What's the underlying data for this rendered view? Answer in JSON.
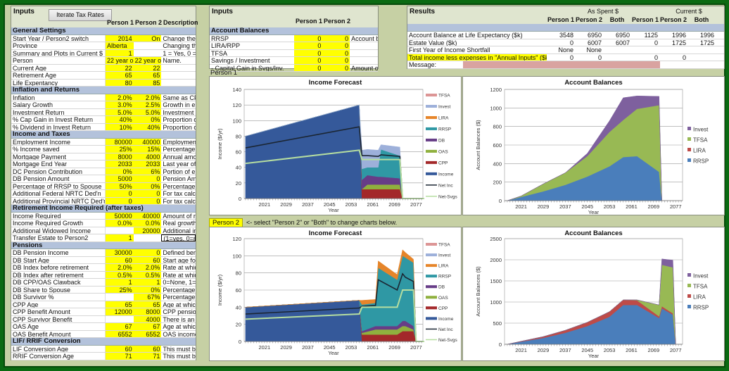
{
  "left_panel": {
    "title": "Inputs",
    "iterate_button": "Iterate Tax Rates",
    "col_headers": [
      "Person 1",
      "Person 2",
      "Description"
    ],
    "rows": [
      {
        "type": "header",
        "label": "General Settings"
      },
      {
        "label": "Start Year / Person2 switch",
        "p1": "2014",
        "p2": "On",
        "desc": "Change the C"
      },
      {
        "label": "Province",
        "p1": "Alberta",
        "p2": "",
        "desc": "Changing the",
        "p2_blank": true,
        "p1_left": true
      },
      {
        "label": "Summary and Plots in Current $",
        "p1": "1",
        "p2": "",
        "desc": "1 = Yes, 0 =",
        "p2_blank": true
      },
      {
        "label": "Person",
        "p1": "22 year ol",
        "p2": "22 year ol",
        "desc": "Name.",
        "p1_left": true,
        "p2_left": true
      },
      {
        "label": "Current Age",
        "p1": "22",
        "p2": "22",
        "desc": ""
      },
      {
        "label": "Retirement Age",
        "p1": "65",
        "p2": "65",
        "desc": ""
      },
      {
        "label": "Life Expentancy",
        "p1": "80",
        "p2": "85",
        "desc": ""
      },
      {
        "type": "header",
        "label": "Inflation and Returns"
      },
      {
        "label": "Inflation",
        "p1": "2.0%",
        "p2": "2.0%",
        "desc": "Same as CP"
      },
      {
        "label": "Salary Growth",
        "p1": "3.0%",
        "p2": "2.5%",
        "desc": "Growth in em"
      },
      {
        "label": "Investment Return",
        "p1": "5.0%",
        "p2": "5.0%",
        "desc": "Investment re"
      },
      {
        "label": "% Cap Gain in Invest Return",
        "p1": "40%",
        "p2": "0%",
        "desc": "Proportion of"
      },
      {
        "label": "% Dividend in Invest Return",
        "p1": "10%",
        "p2": "40%",
        "desc": "Proportion of"
      },
      {
        "type": "header",
        "label": "Income and Taxes"
      },
      {
        "label": "Employment Income",
        "p1": "80000",
        "p2": "40000",
        "desc": "Employment"
      },
      {
        "label": "% Income saved",
        "p1": "25%",
        "p2": "15%",
        "desc": "Percentage c"
      },
      {
        "label": "Mortgage Payment",
        "p1": "8000",
        "p2": "4000",
        "desc": "Annual amou"
      },
      {
        "label": "Mortgage End Year",
        "p1": "2033",
        "p2": "2033",
        "desc": "Last year of t"
      },
      {
        "label": "DC Pension Contribution",
        "p1": "0%",
        "p2": "6%",
        "desc": "Portion of em"
      },
      {
        "label": "DB Pension Amount",
        "p1": "5000",
        "p2": "0",
        "desc": "Pension Amc"
      },
      {
        "label": "Percentage of RRSP to Spouse",
        "p1": "50%",
        "p2": "0%",
        "desc": "Percentage c"
      },
      {
        "label": "Additional Federal NRTC Ded'n",
        "p1": "0",
        "p2": "0",
        "desc": "For tax calcu"
      },
      {
        "label": "Additional Provincial NRTC Ded'n",
        "p1": "0",
        "p2": "0",
        "desc": "For tax calcu"
      },
      {
        "type": "header",
        "label": "Retirement Income Required (after taxes)"
      },
      {
        "label": "Income Required",
        "p1": "50000",
        "p2": "40000",
        "desc": "Amount of re"
      },
      {
        "label": "Income Required Growth",
        "p1": "0.0%",
        "p2": "0.0%",
        "desc": "Real growth i"
      },
      {
        "label": "Additional Widowed Income",
        "p1": "",
        "p2": "20000",
        "desc": "Additional inc",
        "p1_blank": true
      },
      {
        "label": "Transfer Estate to Person2",
        "p1": "1",
        "p2": "",
        "desc": "(1=yes, 0=no",
        "p2_blank": true,
        "desc_boxed": true
      },
      {
        "type": "header",
        "label": "Pensions"
      },
      {
        "label": "DB Pension Income",
        "p1": "30000",
        "p2": "0",
        "desc": "Defined bene"
      },
      {
        "label": "DB Start Age",
        "p1": "60",
        "p2": "60",
        "desc": "Start age for"
      },
      {
        "label": "DB Index before retirement",
        "p1": "2.0%",
        "p2": "2.0%",
        "desc": "Rate at which"
      },
      {
        "label": "DB Index after retirement",
        "p1": "0.5%",
        "p2": "0.5%",
        "desc": "Rate at which"
      },
      {
        "label": "DB CPP/OAS Clawback",
        "p1": "1",
        "p2": "1",
        "desc": "0=None, 1=C"
      },
      {
        "label": "DB Share to Spouse",
        "p1": "25%",
        "p2": "0%",
        "desc": "Percentage c"
      },
      {
        "label": "DB Survivor %",
        "p1": "",
        "p2": "67%",
        "desc": "Percentage c",
        "p1_blank": true
      },
      {
        "label": "CPP Age",
        "p1": "65",
        "p2": "65",
        "desc": "Age at which"
      },
      {
        "label": "CPP Benefit Amount",
        "p1": "12000",
        "p2": "8000",
        "desc": "CPP pension"
      },
      {
        "label": "CPP Survivor Benefit",
        "p1": "",
        "p2": "4000",
        "desc": "There is an e",
        "p1_blank": true
      },
      {
        "label": "OAS Age",
        "p1": "67",
        "p2": "67",
        "desc": "Age at which"
      },
      {
        "label": "OAS Benefit Amount",
        "p1": "6552",
        "p2": "6552",
        "desc": "OAS income"
      },
      {
        "type": "header",
        "label": "LIF/ RRIF Conversion"
      },
      {
        "label": "LIF Conversion Age",
        "p1": "60",
        "p2": "60",
        "desc": "This must be"
      },
      {
        "label": "RRIF Conversion Age",
        "p1": "71",
        "p2": "71",
        "desc": "This must be"
      }
    ]
  },
  "mid_panel": {
    "title": "Inputs",
    "col_headers": [
      "Person 1",
      "Person 2"
    ],
    "rows": [
      {
        "type": "header",
        "label": "Account Balances"
      },
      {
        "label": "RRSP",
        "p1": "0",
        "p2": "0",
        "desc": "Account ba"
      },
      {
        "label": "LIRA/RPP",
        "p1": "0",
        "p2": "0",
        "desc": ""
      },
      {
        "label": "TFSA",
        "p1": "0",
        "p2": "0",
        "desc": ""
      },
      {
        "label": "Savings / Investment",
        "p1": "0",
        "p2": "0",
        "desc": ""
      },
      {
        "label": " - Capital Gain in Svgs/Inv.",
        "p1": "0",
        "p2": "0",
        "desc": "Amount of"
      }
    ]
  },
  "results": {
    "title": "Results",
    "group_as_spent": "As Spent $",
    "group_current": "Current $",
    "col_headers": [
      "Person 1",
      "Person 2",
      "Both",
      "Person 1",
      "Person 2",
      "Both"
    ],
    "rows": [
      {
        "label": "Account Balance at Life Expectancy ($k)",
        "vals": [
          "3548",
          "6950",
          "6950",
          "1125",
          "1996",
          "1996"
        ]
      },
      {
        "label": "Estate Value ($k)",
        "vals": [
          "0",
          "6007",
          "6007",
          "0",
          "1725",
          "1725"
        ]
      },
      {
        "label": "First Year of Income Shortfall",
        "vals": [
          "None",
          "None",
          "",
          "",
          "",
          ""
        ]
      },
      {
        "label": "Total income less expenses in \"Annual Inputs\" ($k)",
        "vals": [
          "0",
          "0",
          "",
          "0",
          "0",
          ""
        ],
        "highlight": true
      },
      {
        "label": "Message:",
        "vals": [],
        "message": ""
      }
    ]
  },
  "person1_label": "Person 1",
  "person2_selector": {
    "value": "Person 2",
    "hint": "<- select \"Person 2\" or \"Both\" to change charts below."
  },
  "colors": {
    "Income": "#35599a",
    "CPP": "#a3282a",
    "OAS": "#8fb03e",
    "DB": "#673d87",
    "RRSP": "#2f98a4",
    "LIRA": "#e6852a",
    "Invest": "#9db0da",
    "TFSA": "#dc9595",
    "Net Inc": "#1b2633",
    "Net-Svgs": "#b6dea0",
    "bal_RRSP": "#4a7ebb",
    "bal_LIRA": "#be4b48",
    "bal_TFSA": "#98b954",
    "bal_Invest": "#7e609e",
    "message_bg": "#d9a3a0",
    "input_yellow": "#ffff00"
  },
  "chart_data": [
    {
      "id": "p1-income",
      "type": "area",
      "title": "Income Forecast",
      "xlabel": "Year",
      "ylabel": "Income ($/yr)",
      "ylim": [
        0,
        140
      ],
      "yticks": [
        0,
        20,
        40,
        60,
        80,
        100,
        120,
        140
      ],
      "xticks": [
        2021,
        2029,
        2037,
        2045,
        2053,
        2061,
        2069,
        2077
      ],
      "xlim": [
        2013.5,
        2079.5
      ],
      "grid": true,
      "legend": "right",
      "x": [
        2014,
        2056,
        2057,
        2059,
        2063,
        2064,
        2071,
        2072,
        2080
      ],
      "legend_order": [
        "TFSA",
        "Invest",
        "LIRA",
        "RRSP",
        "DB",
        "OAS",
        "CPP",
        "Income",
        "Net Inc",
        "Net-Svgs"
      ],
      "stack": [
        {
          "name": "Income",
          "values": [
            80,
            120,
            0,
            0,
            0,
            0,
            0,
            0,
            0
          ]
        },
        {
          "name": "CPP",
          "values": [
            0,
            0,
            12,
            12,
            12,
            12,
            12,
            0,
            0
          ]
        },
        {
          "name": "OAS",
          "values": [
            0,
            0,
            0,
            6,
            6,
            6,
            6,
            0,
            0
          ]
        },
        {
          "name": "DB",
          "values": [
            0,
            0,
            12,
            12,
            10,
            10,
            8,
            0,
            0
          ]
        },
        {
          "name": "RRSP",
          "values": [
            0,
            0,
            14,
            10,
            12,
            35,
            29,
            0,
            0
          ]
        },
        {
          "name": "LIRA",
          "values": [
            0,
            0,
            0,
            0,
            0,
            0,
            0,
            0,
            0
          ]
        },
        {
          "name": "Invest",
          "values": [
            0,
            0,
            24,
            23,
            22,
            6,
            11,
            0,
            0
          ]
        },
        {
          "name": "TFSA",
          "values": [
            0,
            0,
            0,
            0,
            0,
            0,
            0,
            0,
            0
          ]
        }
      ],
      "lines": [
        {
          "name": "Net Inc",
          "values": [
            65,
            92,
            55,
            55,
            54,
            56,
            54,
            0,
            0
          ]
        },
        {
          "name": "Net-Svgs",
          "values": [
            45,
            62,
            50,
            50,
            50,
            50,
            50,
            0,
            0
          ]
        }
      ]
    },
    {
      "id": "p1-balances",
      "type": "area",
      "title": "Account Balances",
      "xlabel": "Year",
      "ylabel": "Account Balances ($)",
      "ylim": [
        0,
        1200
      ],
      "yticks": [
        0,
        200,
        400,
        600,
        800,
        1000,
        1200
      ],
      "xticks": [
        2021,
        2029,
        2037,
        2045,
        2053,
        2061,
        2069,
        2077
      ],
      "xlim": [
        2015,
        2079.5
      ],
      "grid": true,
      "legend": "right",
      "x": [
        2016,
        2021,
        2029,
        2037,
        2045,
        2053,
        2058,
        2063,
        2071,
        2072
      ],
      "legend_order": [
        "Invest",
        "TFSA",
        "LIRA",
        "RRSP"
      ],
      "stack": [
        {
          "name": "RRSP",
          "values": [
            0,
            40,
            100,
            170,
            260,
            370,
            470,
            480,
            310,
            0
          ]
        },
        {
          "name": "LIRA",
          "values": [
            0,
            0,
            0,
            0,
            0,
            0,
            0,
            0,
            0,
            0
          ]
        },
        {
          "name": "TFSA",
          "values": [
            0,
            10,
            80,
            130,
            220,
            370,
            400,
            510,
            720,
            0
          ]
        },
        {
          "name": "Invest",
          "values": [
            0,
            0,
            0,
            0,
            30,
            120,
            240,
            140,
            95,
            0
          ]
        }
      ],
      "lines": []
    },
    {
      "id": "p2-income",
      "type": "area",
      "title": "Income Forecast",
      "xlabel": "Year",
      "ylabel": "Income ($/yr)",
      "ylim": [
        0,
        120
      ],
      "yticks": [
        0,
        20,
        40,
        60,
        80,
        100,
        120
      ],
      "xticks": [
        2021,
        2029,
        2037,
        2045,
        2053,
        2061,
        2069,
        2077
      ],
      "xlim": [
        2013.5,
        2079.5
      ],
      "grid": true,
      "legend": "right",
      "x": [
        2014,
        2056,
        2057,
        2062,
        2063,
        2070,
        2072,
        2073,
        2076,
        2077,
        2080
      ],
      "legend_order": [
        "TFSA",
        "Invest",
        "LIRA",
        "RRSP",
        "DB",
        "OAS",
        "CPP",
        "Income",
        "Net Inc",
        "Net-Svgs"
      ],
      "stack": [
        {
          "name": "Income",
          "values": [
            40,
            48,
            0,
            0,
            0,
            0,
            0,
            0,
            0,
            0,
            0
          ]
        },
        {
          "name": "CPP",
          "values": [
            0,
            0,
            8,
            8,
            8,
            8,
            12,
            12,
            12,
            0,
            0
          ]
        },
        {
          "name": "OAS",
          "values": [
            0,
            0,
            2,
            6,
            6,
            6,
            6,
            6,
            2,
            0,
            0
          ]
        },
        {
          "name": "DB",
          "values": [
            0,
            0,
            2,
            4,
            4,
            4,
            6,
            6,
            4,
            0,
            0
          ]
        },
        {
          "name": "RRSP",
          "values": [
            0,
            0,
            31,
            27,
            68,
            54,
            76,
            74,
            74,
            0,
            0
          ]
        },
        {
          "name": "LIRA",
          "values": [
            0,
            0,
            5,
            4,
            8,
            6,
            7,
            6,
            4,
            0,
            0
          ]
        },
        {
          "name": "Invest",
          "values": [
            0,
            0,
            0,
            0,
            0,
            0,
            0,
            0,
            0,
            0,
            0
          ]
        },
        {
          "name": "TFSA",
          "values": [
            0,
            0,
            0,
            0,
            0,
            0,
            0,
            0,
            0,
            0,
            0
          ]
        }
      ],
      "lines": [
        {
          "name": "Net Inc",
          "values": [
            32,
            39,
            41,
            42,
            72,
            60,
            79,
            75,
            70,
            0,
            0
          ]
        },
        {
          "name": "Net-Svgs",
          "values": [
            26,
            32,
            40,
            40,
            40,
            40,
            60,
            60,
            60,
            0,
            0
          ]
        }
      ]
    },
    {
      "id": "p2-balances",
      "type": "area",
      "title": "Account Balances",
      "xlabel": "Year",
      "ylabel": "Account Balances ($)",
      "ylim": [
        0,
        2500
      ],
      "yticks": [
        0,
        500,
        1000,
        1500,
        2000,
        2500
      ],
      "xticks": [
        2021,
        2029,
        2037,
        2045,
        2053,
        2061,
        2069,
        2077
      ],
      "xlim": [
        2015,
        2079.5
      ],
      "grid": true,
      "legend": "right",
      "x": [
        2016,
        2021,
        2029,
        2037,
        2045,
        2053,
        2058,
        2063,
        2071,
        2072,
        2076,
        2077
      ],
      "legend_order": [
        "Invest",
        "TFSA",
        "LIRA",
        "RRSP"
      ],
      "stack": [
        {
          "name": "RRSP",
          "values": [
            0,
            60,
            150,
            270,
            430,
            650,
            930,
            930,
            620,
            850,
            700,
            0
          ]
        },
        {
          "name": "LIRA",
          "values": [
            0,
            10,
            30,
            60,
            90,
            120,
            120,
            110,
            40,
            50,
            30,
            0
          ]
        },
        {
          "name": "TFSA",
          "values": [
            0,
            0,
            0,
            0,
            0,
            0,
            0,
            10,
            270,
            980,
            1090,
            0
          ]
        },
        {
          "name": "Invest",
          "values": [
            0,
            0,
            0,
            0,
            0,
            0,
            0,
            0,
            0,
            140,
            170,
            0
          ]
        }
      ],
      "lines": []
    }
  ]
}
